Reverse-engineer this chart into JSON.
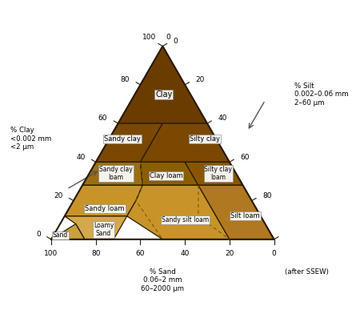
{
  "bg_color": "#ffffff",
  "outline_color": "#2a1a00",
  "label_bg": "#ffffff",
  "label_edge": "#888888",
  "colors": {
    "Clay": "#6b3c00",
    "Sandy clay": "#7a4800",
    "Silty clay": "#7a4800",
    "Clay loam": "#8b5e00",
    "Silty clay loam": "#8b5500",
    "Sandy clay loam": "#9b6e10",
    "Sandy loam": "#c8942a",
    "Sandy silt loam": "#c8942a",
    "Silt loam": "#b07820",
    "Loamy Sand": "#d4a84b",
    "Sand": "#c8a040"
  },
  "dashed_color": "#7a5500",
  "tick_color": "#2a1a00",
  "left_axis_label": "% Clay\n<0.002 mm\n<2 μm",
  "bottom_axis_label": "% Sand\n0.06–2 mm\n60–2000 μm",
  "right_axis_label": "% Silt\n0.002–0.06 mm\n2–60 μm",
  "after_label": "(after SSEW)"
}
